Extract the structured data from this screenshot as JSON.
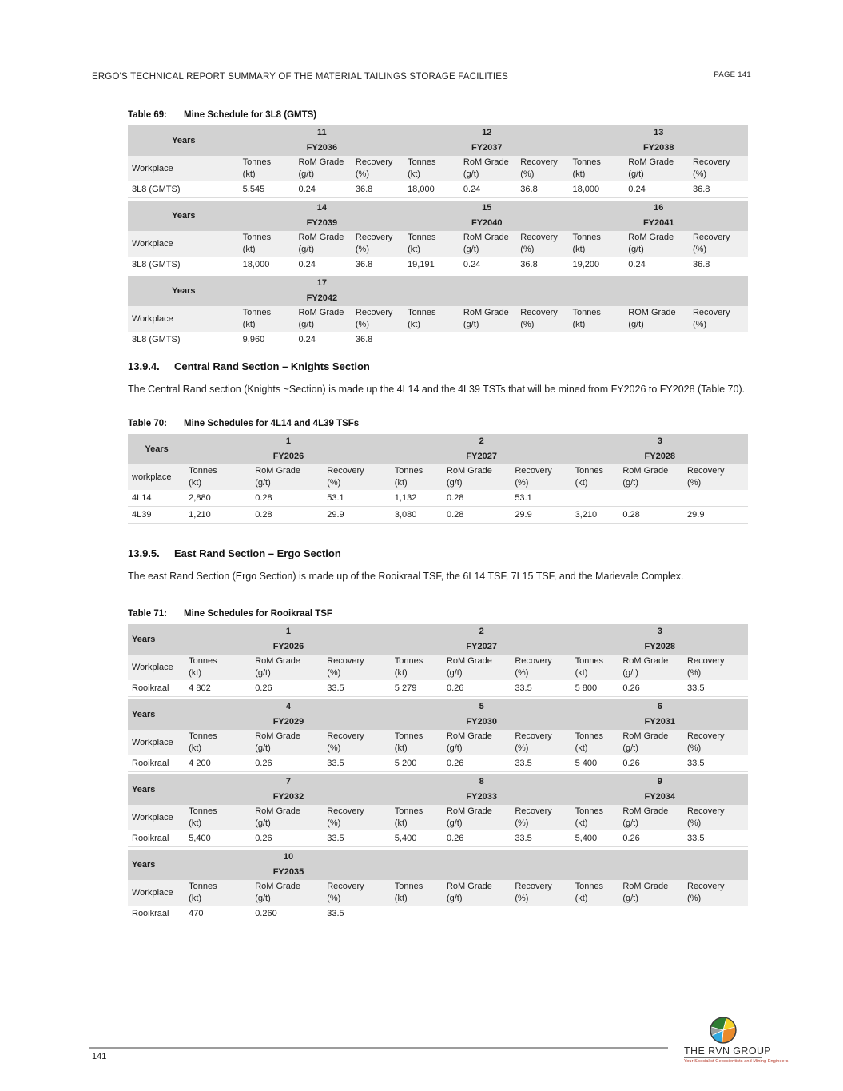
{
  "header": {
    "title": "ERGO'S TECHNICAL REPORT SUMMARY OF THE MATERIAL TAILINGS STORAGE FACILITIES",
    "page_label": "PAGE 141"
  },
  "sections": [
    {
      "number": "13.9.4.",
      "title": "Central Rand Section – Knights Section",
      "body": "The Central Rand section (Knights ~Section) is made up the 4L14 and the 4L39 TSTs that will be mined from FY2026 to FY2028 (Table 70)."
    },
    {
      "number": "13.9.5.",
      "title": "East Rand Section – Ergo Section",
      "body": "The east Rand Section (Ergo Section) is made up of the Rooikraal TSF, the 6L14 TSF, 7L15 TSF, and the Marievale Complex."
    }
  ],
  "tables": [
    {
      "id": "t69",
      "label": "Table 69:",
      "title": "Mine Schedule for 3L8 (GMTS)",
      "years_label": "Years",
      "blocks": [
        {
          "years": [
            {
              "num": "11",
              "fy": "FY2036"
            },
            {
              "num": "12",
              "fy": "FY2037"
            },
            {
              "num": "13",
              "fy": "FY2038"
            }
          ],
          "workplace_label": "Workplace",
          "columns": [
            {
              "l1": "Tonnes",
              "l2": "(kt)"
            },
            {
              "l1": "RoM Grade",
              "l2": "(g/t)"
            },
            {
              "l1": "Recovery",
              "l2": "(%)"
            },
            {
              "l1": "Tonnes",
              "l2": "(kt)"
            },
            {
              "l1": "RoM Grade",
              "l2": "(g/t)"
            },
            {
              "l1": "Recovery",
              "l2": "(%)"
            },
            {
              "l1": "Tonnes",
              "l2": "(kt)"
            },
            {
              "l1": "RoM Grade",
              "l2": "(g/t)"
            },
            {
              "l1": "Recovery",
              "l2": "(%)"
            }
          ],
          "rows": [
            {
              "name": "3L8 (GMTS)",
              "values": [
                "5,545",
                "0.24",
                "36.8",
                "18,000",
                "0.24",
                "36.8",
                "18,000",
                "0.24",
                "36.8"
              ]
            }
          ]
        },
        {
          "years": [
            {
              "num": "14",
              "fy": "FY2039"
            },
            {
              "num": "15",
              "fy": "FY2040"
            },
            {
              "num": "16",
              "fy": "FY2041"
            }
          ],
          "workplace_label": "Workplace",
          "columns": [
            {
              "l1": "Tonnes",
              "l2": "(kt)"
            },
            {
              "l1": "RoM Grade",
              "l2": "(g/t)"
            },
            {
              "l1": "Recovery",
              "l2": "(%)"
            },
            {
              "l1": "Tonnes",
              "l2": "(kt)"
            },
            {
              "l1": "RoM Grade",
              "l2": "(g/t)"
            },
            {
              "l1": "Recovery",
              "l2": "(%)"
            },
            {
              "l1": "Tonnes",
              "l2": "(kt)"
            },
            {
              "l1": "RoM Grade",
              "l2": "(g/t)"
            },
            {
              "l1": "Recovery",
              "l2": "(%)"
            }
          ],
          "rows": [
            {
              "name": "3L8 (GMTS)",
              "values": [
                "18,000",
                "0.24",
                "36.8",
                "19,191",
                "0.24",
                "36.8",
                "19,200",
                "0.24",
                "36.8"
              ]
            }
          ]
        },
        {
          "years": [
            {
              "num": "17",
              "fy": "FY2042"
            },
            {
              "num": "",
              "fy": ""
            },
            {
              "num": "",
              "fy": ""
            }
          ],
          "workplace_label": "Workplace",
          "columns": [
            {
              "l1": "Tonnes",
              "l2": "(kt)"
            },
            {
              "l1": "RoM Grade",
              "l2": "(g/t)"
            },
            {
              "l1": "Recovery",
              "l2": "(%)"
            },
            {
              "l1": "Tonnes",
              "l2": "(kt)"
            },
            {
              "l1": "RoM Grade",
              "l2": "(g/t)"
            },
            {
              "l1": "Recovery",
              "l2": "(%)"
            },
            {
              "l1": "Tonnes",
              "l2": "(kt)"
            },
            {
              "l1": "ROM Grade",
              "l2": "(g/t)"
            },
            {
              "l1": "Recovery",
              "l2": "(%)"
            }
          ],
          "rows": [
            {
              "name": "3L8 (GMTS)",
              "values": [
                "9,960",
                "0.24",
                "36.8",
                "",
                "",
                "",
                "",
                "",
                ""
              ]
            }
          ]
        }
      ]
    },
    {
      "id": "t70",
      "label": "Table 70:",
      "title": "Mine Schedules for 4L14 and 4L39 TSFs",
      "years_label": "Years",
      "blocks": [
        {
          "years": [
            {
              "num": "1",
              "fy": "FY2026"
            },
            {
              "num": "2",
              "fy": "FY2027"
            },
            {
              "num": "3",
              "fy": "FY2028"
            }
          ],
          "workplace_label": "workplace",
          "columns": [
            {
              "l1": "Tonnes",
              "l2": "(kt)"
            },
            {
              "l1": "RoM Grade",
              "l2": "(g/t)"
            },
            {
              "l1": "Recovery",
              "l2": "(%)"
            },
            {
              "l1": "Tonnes",
              "l2": "(kt)"
            },
            {
              "l1": "RoM Grade",
              "l2": "(g/t)"
            },
            {
              "l1": "Recovery",
              "l2": "(%)"
            },
            {
              "l1": "Tonnes",
              "l2": "(kt)"
            },
            {
              "l1": "RoM Grade",
              "l2": "(g/t)"
            },
            {
              "l1": "Recovery",
              "l2": "(%)"
            }
          ],
          "rows": [
            {
              "name": "4L14",
              "values": [
                "2,880",
                "0.28",
                "53.1",
                "1,132",
                "0.28",
                "53.1",
                "",
                "",
                ""
              ]
            },
            {
              "name": "4L39",
              "values": [
                "1,210",
                "0.28",
                "29.9",
                "3,080",
                "0.28",
                "29.9",
                "3,210",
                "0.28",
                "29.9"
              ]
            }
          ]
        }
      ]
    },
    {
      "id": "t71",
      "label": "Table 71:",
      "title": "Mine Schedules for Rooikraal TSF",
      "years_label": "Years",
      "blocks": [
        {
          "years": [
            {
              "num": "1",
              "fy": "FY2026"
            },
            {
              "num": "2",
              "fy": "FY2027"
            },
            {
              "num": "3",
              "fy": "FY2028"
            }
          ],
          "workplace_label": "Workplace",
          "columns": [
            {
              "l1": "Tonnes",
              "l2": "(kt)"
            },
            {
              "l1": "RoM Grade",
              "l2": "(g/t)"
            },
            {
              "l1": "Recovery",
              "l2": "(%)"
            },
            {
              "l1": "Tonnes",
              "l2": "(kt)"
            },
            {
              "l1": "RoM Grade",
              "l2": "(g/t)"
            },
            {
              "l1": "Recovery",
              "l2": "(%)"
            },
            {
              "l1": "Tonnes",
              "l2": "(kt)"
            },
            {
              "l1": "RoM Grade",
              "l2": "(g/t)"
            },
            {
              "l1": "Recovery",
              "l2": "(%)"
            }
          ],
          "rows": [
            {
              "name": "Rooikraal",
              "values": [
                "4 802",
                "0.26",
                "33.5",
                "5 279",
                "0.26",
                "33.5",
                "5 800",
                "0.26",
                "33.5"
              ]
            }
          ]
        },
        {
          "years": [
            {
              "num": "4",
              "fy": "FY2029"
            },
            {
              "num": "5",
              "fy": "FY2030"
            },
            {
              "num": "6",
              "fy": "FY2031"
            }
          ],
          "workplace_label": "Workplace",
          "columns": [
            {
              "l1": "Tonnes",
              "l2": "(kt)"
            },
            {
              "l1": "RoM Grade",
              "l2": "(g/t)"
            },
            {
              "l1": "Recovery",
              "l2": "(%)"
            },
            {
              "l1": "Tonnes",
              "l2": "(kt)"
            },
            {
              "l1": "RoM Grade",
              "l2": "(g/t)"
            },
            {
              "l1": "Recovery",
              "l2": "(%)"
            },
            {
              "l1": "Tonnes",
              "l2": "(kt)"
            },
            {
              "l1": "RoM Grade",
              "l2": "(g/t)"
            },
            {
              "l1": "Recovery",
              "l2": "(%)"
            }
          ],
          "rows": [
            {
              "name": "Rooikraal",
              "values": [
                "4 200",
                "0.26",
                "33.5",
                "5 200",
                "0.26",
                "33.5",
                "5 400",
                "0.26",
                "33.5"
              ]
            }
          ]
        },
        {
          "years": [
            {
              "num": "7",
              "fy": "FY2032"
            },
            {
              "num": "8",
              "fy": "FY2033"
            },
            {
              "num": "9",
              "fy": "FY2034"
            }
          ],
          "workplace_label": "Workplace",
          "columns": [
            {
              "l1": "Tonnes",
              "l2": "(kt)"
            },
            {
              "l1": "RoM Grade",
              "l2": "(g/t)"
            },
            {
              "l1": "Recovery",
              "l2": "(%)"
            },
            {
              "l1": "Tonnes",
              "l2": "(kt)"
            },
            {
              "l1": "RoM Grade",
              "l2": "(g/t)"
            },
            {
              "l1": "Recovery",
              "l2": "(%)"
            },
            {
              "l1": "Tonnes",
              "l2": "(kt)"
            },
            {
              "l1": "RoM Grade",
              "l2": "(g/t)"
            },
            {
              "l1": "Recovery",
              "l2": "(%)"
            }
          ],
          "rows": [
            {
              "name": "Rooikraal",
              "values": [
                "5,400",
                "0.26",
                "33.5",
                "5,400",
                "0.26",
                "33.5",
                "5,400",
                "0.26",
                "33.5"
              ]
            }
          ]
        },
        {
          "years": [
            {
              "num": "10",
              "fy": "FY2035"
            },
            {
              "num": "",
              "fy": ""
            },
            {
              "num": "",
              "fy": ""
            }
          ],
          "workplace_label": "Workplace",
          "columns": [
            {
              "l1": "Tonnes",
              "l2": "(kt)"
            },
            {
              "l1": "RoM Grade",
              "l2": "(g/t)"
            },
            {
              "l1": "Recovery",
              "l2": "(%)"
            },
            {
              "l1": "Tonnes",
              "l2": "(kt)"
            },
            {
              "l1": "RoM Grade",
              "l2": "(g/t)"
            },
            {
              "l1": "Recovery",
              "l2": "(%)"
            },
            {
              "l1": "Tonnes",
              "l2": "(kt)"
            },
            {
              "l1": "RoM Grade",
              "l2": "(g/t)"
            },
            {
              "l1": "Recovery",
              "l2": "(%)"
            }
          ],
          "rows": [
            {
              "name": "Rooikraal",
              "values": [
                "470",
                "0.260",
                "33.5",
                "",
                "",
                "",
                "",
                "",
                ""
              ]
            }
          ]
        }
      ]
    }
  ],
  "footer": {
    "page_number": "141",
    "logo_name": "THE RVN GROUP",
    "logo_tagline": "Your Specialist Geoscientists and Mining Engineers"
  },
  "colors": {
    "years_band": "#d2d2d2",
    "header_band": "#efefef"
  }
}
